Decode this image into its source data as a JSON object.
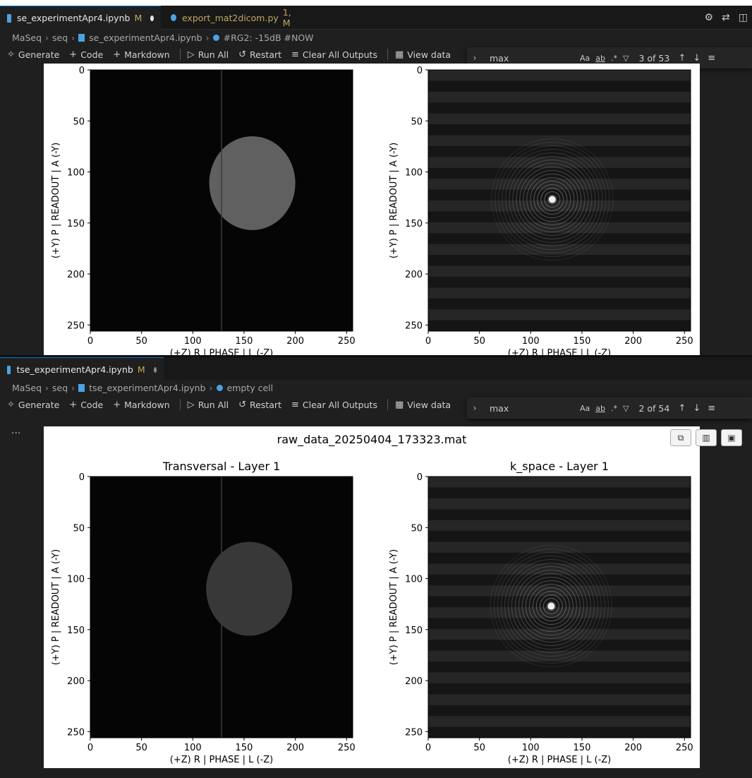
{
  "colors": {
    "accent": "#0078d4",
    "modified": "#c0a860",
    "notebook_icon": "#4ba3e3",
    "python_icon": "#4ba3e3"
  },
  "top_editor": {
    "tabs": [
      {
        "name": "se_experimentApr4.ipynb",
        "status": "M",
        "icon": "notebook-icon"
      },
      {
        "name": "export_mat2dicom.py",
        "status": "1, M",
        "icon": "python-icon"
      }
    ],
    "right_icons": [
      "gear-icon",
      "compare-icon",
      "split-editor-icon"
    ],
    "breadcrumb": [
      "MaSeq",
      "seq",
      "se_experimentApr4.ipynb",
      "#RG2: -15dB #NOW"
    ],
    "toolbar": {
      "generate": "Generate",
      "code": "Code",
      "markdown": "Markdown",
      "run_all": "Run All",
      "restart": "Restart",
      "clear_outputs": "Clear All Outputs",
      "view_data": "View data"
    },
    "find": {
      "value": "max",
      "count": "3 of 53",
      "case_label": "Aa",
      "word_label": "ab"
    }
  },
  "bottom_editor": {
    "tabs": [
      {
        "name": "tse_experimentApr4.ipynb",
        "status": "M",
        "icon": "notebook-icon"
      }
    ],
    "breadcrumb": [
      "MaSeq",
      "seq",
      "tse_experimentApr4.ipynb",
      "empty cell"
    ],
    "toolbar": {
      "generate": "Generate",
      "code": "Code",
      "markdown": "Markdown",
      "run_all": "Run All",
      "restart": "Restart",
      "clear_outputs": "Clear All Outputs",
      "view_data": "View data"
    },
    "find": {
      "value": "max",
      "count": "2 of 54",
      "case_label": "Aa",
      "word_label": "ab"
    },
    "cell_more": "..."
  },
  "chart_data": [
    {
      "type": "heatmap",
      "panel": "top-left",
      "title": "",
      "xlabel": "(+Z) R | PHASE | L (-Z)",
      "ylabel": "(+Y) P | READOUT | A (-Y)",
      "xticks": [
        0,
        50,
        100,
        150,
        200,
        250
      ],
      "yticks": [
        0,
        50,
        100,
        150,
        200,
        250
      ],
      "xlim": [
        0,
        256
      ],
      "ylim": [
        256,
        0
      ],
      "colormap": "gray",
      "ellipse": {
        "cx": 158,
        "cy": 111,
        "rx": 42,
        "ry": 46,
        "brightness": 0.6
      }
    },
    {
      "type": "heatmap",
      "panel": "top-right",
      "title": "",
      "xlabel": "(+Z) R | PHASE | L (-Z)",
      "ylabel": "(+Y) P | READOUT | A (-Y)",
      "xticks": [
        0,
        50,
        100,
        150,
        200,
        250
      ],
      "yticks": [
        0,
        50,
        100,
        150,
        200,
        250
      ],
      "xlim": [
        0,
        256
      ],
      "ylim": [
        256,
        0
      ],
      "colormap": "gray",
      "peak": {
        "x": 121,
        "y": 127
      }
    },
    {
      "type": "heatmap",
      "panel": "bottom-left",
      "suptitle": "raw_data_20250404_173323.mat",
      "title": "Transversal - Layer 1",
      "xlabel": "(+Z) R | PHASE | L (-Z)",
      "ylabel": "(+Y) P | READOUT | A (-Y)",
      "xticks": [
        0,
        50,
        100,
        150,
        200,
        250
      ],
      "yticks": [
        0,
        50,
        100,
        150,
        200,
        250
      ],
      "xlim": [
        0,
        256
      ],
      "ylim": [
        256,
        0
      ],
      "colormap": "gray",
      "ellipse": {
        "cx": 155,
        "cy": 110,
        "rx": 42,
        "ry": 46,
        "brightness": 0.35
      }
    },
    {
      "type": "heatmap",
      "panel": "bottom-right",
      "title": "k_space - Layer 1",
      "xlabel": "(+Z) R | PHASE | L (-Z)",
      "ylabel": "(+Y) P | READOUT | A (-Y)",
      "xticks": [
        0,
        50,
        100,
        150,
        200,
        250
      ],
      "yticks": [
        0,
        50,
        100,
        150,
        200,
        250
      ],
      "xlim": [
        0,
        256
      ],
      "ylim": [
        256,
        0
      ],
      "colormap": "gray",
      "peak": {
        "x": 120,
        "y": 127
      }
    }
  ]
}
